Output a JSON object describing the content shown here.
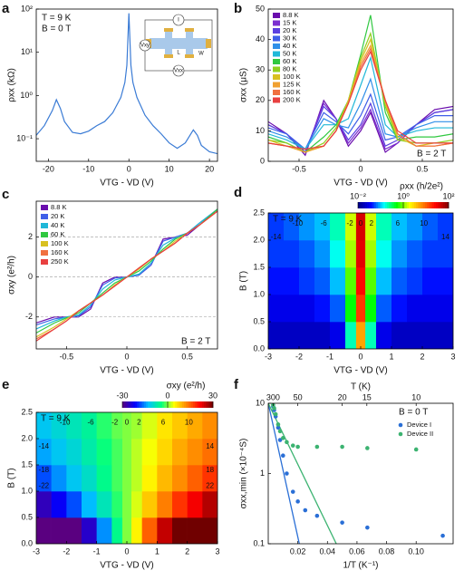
{
  "chart_data": [
    {
      "panel": "a",
      "type": "line",
      "xlabel": "VTG - VD (V)",
      "ylabel": "ρxx (kΩ)",
      "annotations": [
        "T = 9 K",
        "B = 0 T"
      ],
      "inset_labels": [
        "I",
        "Vxy",
        "L",
        "W",
        "Vxx"
      ],
      "x": [
        -23,
        -21,
        -19,
        -18,
        -17,
        -16,
        -14,
        -12,
        -10,
        -8,
        -6,
        -4,
        -2,
        -1,
        -0.5,
        0,
        0.5,
        1,
        2,
        4,
        6,
        8,
        10,
        12,
        14,
        16,
        17,
        18,
        20,
        22
      ],
      "series": [
        {
          "color": "#3a7bd5",
          "values": [
            0.12,
            0.2,
            0.45,
            0.8,
            0.5,
            0.25,
            0.14,
            0.13,
            0.15,
            0.2,
            0.25,
            0.4,
            0.9,
            2,
            5,
            80,
            5,
            2,
            0.9,
            0.35,
            0.2,
            0.13,
            0.08,
            0.06,
            0.08,
            0.16,
            0.12,
            0.07,
            0.05,
            0.045
          ]
        }
      ],
      "xlim": [
        -23,
        22
      ],
      "xticks": [
        -20,
        -10,
        0,
        10,
        20
      ],
      "ylim": [
        0.03,
        100
      ],
      "ylog": true,
      "yticks": [
        {
          "value": 0.1,
          "label": "10⁻¹"
        },
        {
          "value": 1,
          "label": "10⁰"
        },
        {
          "value": 10,
          "label": "10¹"
        },
        {
          "value": 100,
          "label": "10²"
        }
      ]
    },
    {
      "panel": "b",
      "type": "line",
      "xlabel": "VTG - VD (V)",
      "ylabel": "σxx (μS)",
      "annotations": [
        "B = 2 T"
      ],
      "legend": "upper left",
      "x": [
        -0.75,
        -0.6,
        -0.45,
        -0.3,
        -0.2,
        -0.1,
        0,
        0.08,
        0.2,
        0.3,
        0.45,
        0.6,
        0.75
      ],
      "series": [
        {
          "name": "8.8 K",
          "color": "#6a0dad",
          "values": [
            13,
            9,
            2,
            20,
            14,
            5,
            10,
            16,
            3,
            6,
            12,
            17,
            18
          ]
        },
        {
          "name": "15 K",
          "color": "#7b2fd0",
          "values": [
            12,
            9,
            3,
            19,
            14,
            6,
            11,
            17,
            4,
            6,
            12,
            16,
            17
          ]
        },
        {
          "name": "20 K",
          "color": "#5b3fe0",
          "values": [
            12,
            9,
            3,
            18,
            14,
            7,
            12,
            19,
            5,
            7,
            12,
            16,
            17
          ]
        },
        {
          "name": "30 K",
          "color": "#3f5fe8",
          "values": [
            11,
            9,
            4,
            16,
            13,
            9,
            15,
            22,
            7,
            8,
            12,
            15,
            15
          ]
        },
        {
          "name": "40 K",
          "color": "#2f8fe8",
          "values": [
            10,
            8,
            4,
            14,
            12,
            11,
            19,
            27,
            9,
            8,
            11,
            13,
            13
          ]
        },
        {
          "name": "50 K",
          "color": "#20b8d8",
          "values": [
            9,
            7,
            4,
            12,
            12,
            14,
            25,
            34,
            12,
            8,
            10,
            11,
            11
          ]
        },
        {
          "name": "60 K",
          "color": "#30c840",
          "values": [
            8,
            6,
            3,
            8,
            12,
            20,
            35,
            48,
            16,
            7,
            8,
            8,
            9
          ]
        },
        {
          "name": "80 K",
          "color": "#90d020",
          "values": [
            7,
            6,
            3,
            6,
            11,
            20,
            34,
            42,
            18,
            7,
            6,
            6,
            7
          ]
        },
        {
          "name": "100 K",
          "color": "#d8c020",
          "values": [
            7,
            5,
            3,
            5,
            10,
            20,
            33,
            40,
            19,
            8,
            5,
            6,
            6
          ]
        },
        {
          "name": "125 K",
          "color": "#f0a030",
          "values": [
            6,
            5,
            3,
            5,
            10,
            19,
            32,
            38,
            20,
            9,
            5,
            5,
            6
          ]
        },
        {
          "name": "160 K",
          "color": "#f07040",
          "values": [
            6,
            5,
            4,
            5,
            10,
            19,
            31,
            37,
            20,
            9,
            5,
            5,
            6
          ]
        },
        {
          "name": "200 K",
          "color": "#e84040",
          "values": [
            6,
            5,
            4,
            5,
            10,
            19,
            30,
            36,
            20,
            10,
            6,
            6,
            6
          ]
        }
      ],
      "xlim": [
        -0.75,
        0.75
      ],
      "xticks": [
        -0.5,
        0,
        0.5
      ],
      "ylim": [
        0,
        50
      ],
      "yticks": [
        0,
        10,
        20,
        30,
        40,
        50
      ]
    },
    {
      "panel": "c",
      "type": "line",
      "xlabel": "VTG - VD (V)",
      "ylabel": "σxy (e²/h)",
      "annotations": [
        "B = 2 T"
      ],
      "legend": "upper left",
      "grid": true,
      "x": [
        -0.75,
        -0.6,
        -0.5,
        -0.4,
        -0.3,
        -0.2,
        -0.1,
        0,
        0.1,
        0.2,
        0.3,
        0.4,
        0.5,
        0.6,
        0.75
      ],
      "series": [
        {
          "name": "8.8 K",
          "color": "#6a0dad",
          "values": [
            -2.3,
            -2,
            -2,
            -2,
            -1.6,
            -0.3,
            0,
            0,
            0.1,
            0.6,
            1.9,
            2,
            2.1,
            2.6,
            3.4
          ]
        },
        {
          "name": "20 K",
          "color": "#3f5fe8",
          "values": [
            -2.4,
            -2.1,
            -2,
            -1.95,
            -1.5,
            -0.4,
            -0.05,
            0,
            0.1,
            0.6,
            1.8,
            2,
            2.2,
            2.7,
            3.4
          ]
        },
        {
          "name": "40 K",
          "color": "#20b8d8",
          "values": [
            -2.6,
            -2.2,
            -2,
            -1.9,
            -1.4,
            -0.6,
            -0.15,
            0,
            0.15,
            0.7,
            1.6,
            1.95,
            2.2,
            2.7,
            3.4
          ]
        },
        {
          "name": "60 K",
          "color": "#30c840",
          "values": [
            -2.8,
            -2.3,
            -2.05,
            -1.8,
            -1.3,
            -0.8,
            -0.3,
            0,
            0.3,
            0.8,
            1.4,
            1.9,
            2.2,
            2.6,
            3.4
          ]
        },
        {
          "name": "100 K",
          "color": "#d8c020",
          "values": [
            -3,
            -2.5,
            -2.1,
            -1.7,
            -1.3,
            -0.9,
            -0.4,
            0,
            0.4,
            0.9,
            1.3,
            1.8,
            2.2,
            2.6,
            3.3
          ]
        },
        {
          "name": "160 K",
          "color": "#f07040",
          "values": [
            -3.1,
            -2.6,
            -2.2,
            -1.7,
            -1.3,
            -0.9,
            -0.45,
            0,
            0.45,
            0.9,
            1.3,
            1.7,
            2.2,
            2.6,
            3.3
          ]
        },
        {
          "name": "250 K",
          "color": "#e84040",
          "values": [
            -3.2,
            -2.6,
            -2.2,
            -1.7,
            -1.3,
            -0.9,
            -0.45,
            0,
            0.45,
            0.9,
            1.3,
            1.7,
            2.2,
            2.6,
            3.3
          ]
        }
      ],
      "xlim": [
        -0.75,
        0.75
      ],
      "xticks": [
        -0.5,
        0,
        0.5
      ],
      "ylim": [
        -3.6,
        3.8
      ],
      "yticks": [
        -2,
        0,
        2
      ]
    },
    {
      "panel": "d",
      "type": "heatmap",
      "xlabel": "VTG - VD (V)",
      "ylabel": "B (T)",
      "annotations": [
        "T = 9 K"
      ],
      "fan_labels": [
        "-14",
        "-10",
        "-6",
        "-2",
        "0",
        "2",
        "6",
        "10",
        "14"
      ],
      "colorbar_label": "ρxx (h/2e²)",
      "clim": [
        0.01,
        100
      ],
      "clog": true,
      "cticks": [
        {
          "value": 0.01,
          "label": "10⁻²"
        },
        {
          "value": 1,
          "label": "10⁰"
        },
        {
          "value": 100,
          "label": "10²"
        }
      ],
      "colormap": [
        "#000080",
        "#0000ff",
        "#00ffff",
        "#00ff00",
        "#ffff00",
        "#ff8000",
        "#ff0000",
        "#800000"
      ],
      "x_edges": [
        -3,
        -2.5,
        -2,
        -1.5,
        -1,
        -0.5,
        -0.15,
        0.15,
        0.5,
        1,
        1.5,
        2,
        2.5,
        3
      ],
      "y_edges": [
        0,
        0.5,
        1,
        1.5,
        2,
        2.5
      ],
      "values": [
        [
          0.02,
          0.02,
          0.02,
          0.02,
          0.03,
          0.2,
          5,
          0.2,
          0.03,
          0.02,
          0.02,
          0.02,
          0.02
        ],
        [
          0.03,
          0.03,
          0.03,
          0.04,
          0.06,
          0.5,
          15,
          0.5,
          0.06,
          0.04,
          0.03,
          0.03,
          0.03
        ],
        [
          0.04,
          0.04,
          0.05,
          0.06,
          0.1,
          0.8,
          25,
          0.8,
          0.1,
          0.06,
          0.05,
          0.04,
          0.04
        ],
        [
          0.05,
          0.05,
          0.06,
          0.08,
          0.15,
          1.2,
          35,
          1.2,
          0.15,
          0.08,
          0.06,
          0.05,
          0.05
        ],
        [
          0.05,
          0.06,
          0.08,
          0.1,
          0.2,
          1.5,
          40,
          1.5,
          0.2,
          0.1,
          0.08,
          0.06,
          0.05
        ]
      ],
      "xlim": [
        -3,
        3
      ],
      "xticks": [
        -3,
        -2,
        -1,
        0,
        1,
        2,
        3
      ],
      "ylim": [
        0,
        2.5
      ],
      "yticks": [
        {
          "value": 0,
          "label": "0.0"
        },
        0.5,
        {
          "value": 1,
          "label": "1.0"
        },
        1.5,
        {
          "value": 2,
          "label": "2.0"
        },
        2.5
      ]
    },
    {
      "panel": "e",
      "type": "heatmap",
      "xlabel": "VTG - VD (V)",
      "ylabel": "B (T)",
      "annotations": [
        "T = 9 K"
      ],
      "fan_labels": [
        "-10",
        "-6",
        "-2",
        "0",
        "2",
        "6",
        "10",
        "-14",
        "-18",
        "-22",
        "14",
        "18",
        "22"
      ],
      "colorbar_label": "σxy (e²/h)",
      "clim": [
        -30,
        30
      ],
      "cticks": [
        -30,
        0,
        30
      ],
      "colormap": [
        "#5a0080",
        "#0000ff",
        "#00c0ff",
        "#00ff80",
        "#ffff00",
        "#ff8000",
        "#ff0000",
        "#700000"
      ],
      "x_edges": [
        -3,
        -2.5,
        -2,
        -1.5,
        -1,
        -0.5,
        -0.15,
        0.15,
        0.5,
        1,
        1.5,
        2,
        2.5,
        3
      ],
      "y_edges": [
        0,
        0.5,
        1,
        1.5,
        2,
        2.5
      ],
      "values": [
        [
          -30,
          -30,
          -30,
          -25,
          -15,
          -5,
          0,
          5,
          15,
          25,
          30,
          30,
          30
        ],
        [
          -26,
          -22,
          -18,
          -13,
          -8,
          -3,
          0,
          3,
          8,
          13,
          18,
          22,
          26
        ],
        [
          -18,
          -15,
          -12,
          -9,
          -5,
          -2,
          0,
          2,
          5,
          9,
          12,
          15,
          18
        ],
        [
          -14,
          -12,
          -10,
          -7,
          -4,
          -2,
          0,
          2,
          4,
          7,
          10,
          12,
          14
        ],
        [
          -12,
          -10,
          -8,
          -6,
          -3,
          -1,
          0,
          1,
          3,
          6,
          8,
          10,
          12
        ]
      ],
      "xlim": [
        -3,
        3
      ],
      "xticks": [
        -3,
        -2,
        -1,
        0,
        1,
        2,
        3
      ],
      "ylim": [
        0,
        2.5
      ],
      "yticks": [
        {
          "value": 0,
          "label": "0.0"
        },
        0.5,
        {
          "value": 1,
          "label": "1.0"
        },
        1.5,
        {
          "value": 2,
          "label": "2.0"
        },
        2.5
      ]
    },
    {
      "panel": "f",
      "type": "scatter",
      "xlabel": "1/T (K⁻¹)",
      "ylabel": "σxx,min (×10⁻⁴S)",
      "top_label": "T (K)",
      "annotations": [
        "B = 0 T"
      ],
      "legend": "upper right",
      "series": [
        {
          "name": "Device I",
          "color": "#2a6fd6",
          "x": [
            0.0033,
            0.004,
            0.005,
            0.0067,
            0.008,
            0.01,
            0.0125,
            0.0167,
            0.02,
            0.025,
            0.033,
            0.05,
            0.067,
            0.118
          ],
          "values": [
            9,
            8,
            6.5,
            4.5,
            3,
            1.8,
            1,
            0.55,
            0.4,
            0.3,
            0.25,
            0.2,
            0.17,
            0.13
          ]
        },
        {
          "name": "Device II",
          "color": "#3cb371",
          "x": [
            0.0033,
            0.004,
            0.005,
            0.0067,
            0.008,
            0.01,
            0.0125,
            0.0167,
            0.02,
            0.033,
            0.05,
            0.067,
            0.1
          ],
          "values": [
            9.5,
            8.5,
            7,
            5,
            4,
            3.2,
            2.8,
            2.5,
            2.4,
            2.4,
            2.4,
            2.3,
            2.2
          ]
        }
      ],
      "fits": [
        {
          "color": "#2a6fd6",
          "x": [
            0,
            0.021
          ],
          "values": [
            10,
            0.1
          ]
        },
        {
          "color": "#3cb371",
          "x": [
            0,
            0.046
          ],
          "values": [
            10,
            0.1
          ]
        }
      ],
      "xlim": [
        0,
        0.125
      ],
      "xticks": [
        0.02,
        0.04,
        0.06,
        0.08,
        {
          "value": 0.1,
          "label": "0.10"
        }
      ],
      "top_ticks": [
        300,
        50,
        20,
        15,
        10
      ],
      "ylim": [
        0.1,
        10
      ],
      "ylog": true,
      "yticks": [
        0.1,
        1,
        10
      ]
    }
  ]
}
